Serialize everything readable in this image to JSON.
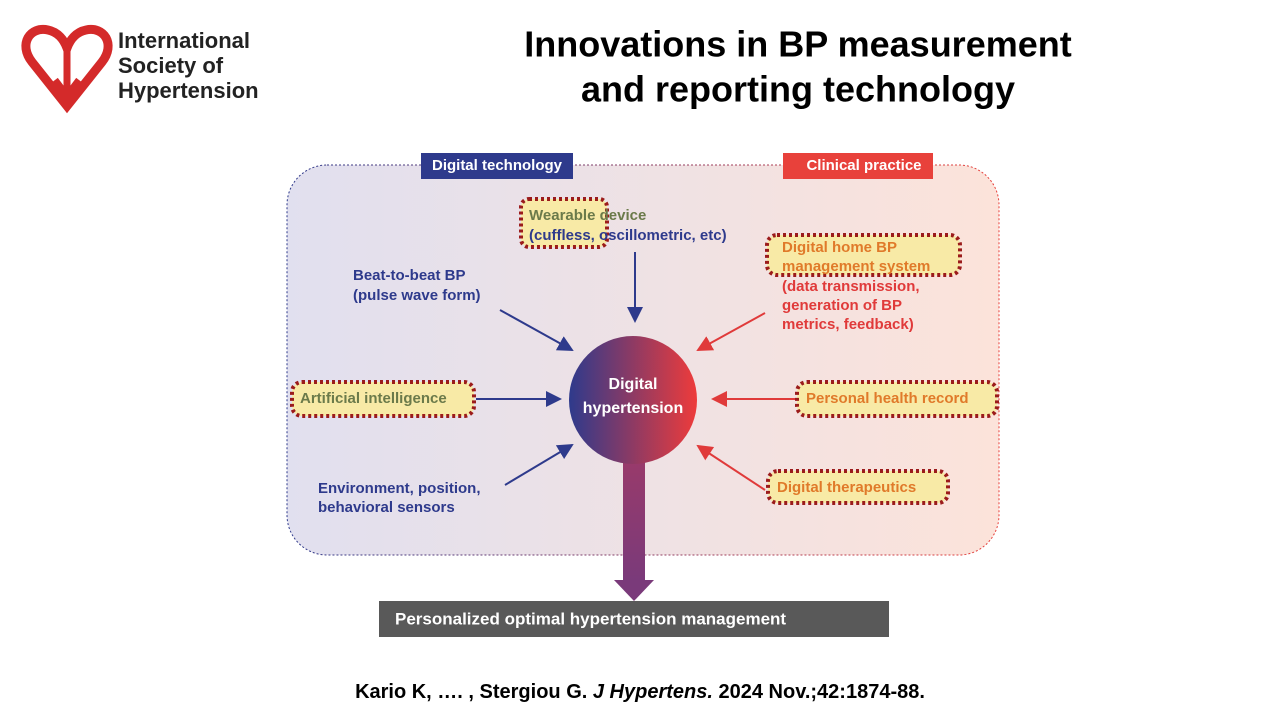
{
  "logo": {
    "lines": [
      "International",
      "Society of",
      "Hypertension"
    ]
  },
  "header": {
    "title_lines": [
      "Innovations in BP measurement",
      "and reporting technology"
    ]
  },
  "diagram": {
    "left_label": "Digital technology",
    "right_label": "Clinical practice",
    "center": {
      "lines": [
        "Digital",
        "hypertension"
      ]
    },
    "nodes": {
      "wearable": {
        "lines": [
          "Wearable device",
          "(cuffless, oscillometric, etc)"
        ]
      },
      "beat_to_beat": {
        "lines": [
          "Beat-to-beat BP",
          "(pulse wave form)"
        ]
      },
      "ai": {
        "label": "Artificial intelligence"
      },
      "environment": {
        "lines": [
          "Environment, position,",
          "behavioral sensors"
        ]
      },
      "home_bp": {
        "title_lines": [
          "Digital home BP",
          "management system"
        ],
        "detail_lines": [
          "(data transmission,",
          "generation of BP",
          "metrics, feedback)"
        ]
      },
      "phr": {
        "label": "Personal health record"
      },
      "therapeutics": {
        "label": "Digital therapeutics"
      }
    },
    "output": "Personalized optimal hypertension management"
  },
  "citation": {
    "authors": "Kario K, …. , Stergiou G. ",
    "journal": "J Hypertens.",
    "details": " 2024 Nov.;42:1874-88."
  }
}
